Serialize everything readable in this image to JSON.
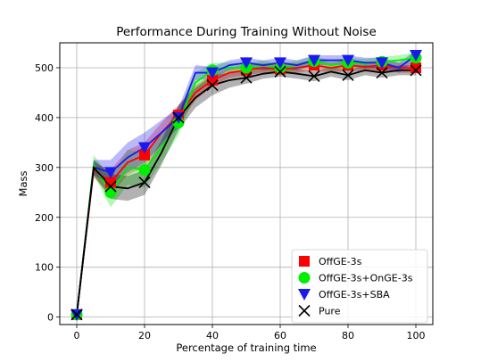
{
  "chart_data": {
    "type": "line",
    "title": "Performance During Training Without Noise",
    "xlabel": "Percentage of training time",
    "ylabel": "Mass",
    "xlim": [
      -5,
      105
    ],
    "ylim": [
      -15,
      550
    ],
    "xticks": [
      0,
      20,
      40,
      60,
      80,
      100
    ],
    "yticks": [
      0,
      100,
      200,
      300,
      400,
      500
    ],
    "grid": true,
    "legend_position": "lower-right",
    "x": [
      0,
      5,
      10,
      15,
      20,
      25,
      30,
      35,
      40,
      45,
      50,
      55,
      60,
      65,
      70,
      75,
      80,
      85,
      90,
      95,
      100
    ],
    "series": [
      {
        "name": "OffGE-3s",
        "color": "#ff0000",
        "marker": "square",
        "values": [
          5,
          295,
          270,
          310,
          325,
          370,
          405,
          450,
          475,
          490,
          495,
          500,
          497,
          500,
          505,
          500,
          505,
          502,
          505,
          500,
          500
        ],
        "band": [
          15,
          15,
          25,
          25,
          25,
          20,
          20,
          15,
          12,
          10,
          10,
          10,
          10,
          10,
          10,
          10,
          10,
          10,
          10,
          10,
          10
        ]
      },
      {
        "name": "OffGE-3s+OnGE-3s",
        "color": "#00ee00",
        "marker": "circle",
        "values": [
          5,
          305,
          250,
          300,
          295,
          340,
          390,
          470,
          495,
          500,
          500,
          505,
          500,
          505,
          513,
          505,
          510,
          508,
          512,
          515,
          520
        ],
        "band": [
          15,
          20,
          30,
          35,
          35,
          30,
          25,
          20,
          15,
          10,
          10,
          10,
          10,
          10,
          10,
          10,
          10,
          10,
          10,
          10,
          10
        ]
      },
      {
        "name": "OffGE-3s+SBA",
        "color": "#1a1aee",
        "marker": "triangle-down",
        "values": [
          5,
          300,
          290,
          320,
          340,
          370,
          400,
          490,
          490,
          505,
          510,
          505,
          510,
          505,
          515,
          515,
          515,
          510,
          510,
          500,
          525
        ],
        "band": [
          15,
          15,
          25,
          30,
          30,
          25,
          20,
          15,
          12,
          10,
          10,
          10,
          10,
          10,
          10,
          10,
          10,
          10,
          10,
          10,
          10
        ]
      },
      {
        "name": "Pure",
        "color": "#000000",
        "marker": "x",
        "values": [
          5,
          300,
          262,
          258,
          270,
          330,
          400,
          440,
          465,
          475,
          480,
          488,
          492,
          488,
          483,
          492,
          485,
          495,
          490,
          495,
          495
        ],
        "band": [
          15,
          15,
          25,
          25,
          25,
          25,
          25,
          20,
          20,
          15,
          12,
          10,
          10,
          10,
          10,
          10,
          10,
          10,
          10,
          10,
          10
        ]
      }
    ],
    "markers_every": 2
  }
}
